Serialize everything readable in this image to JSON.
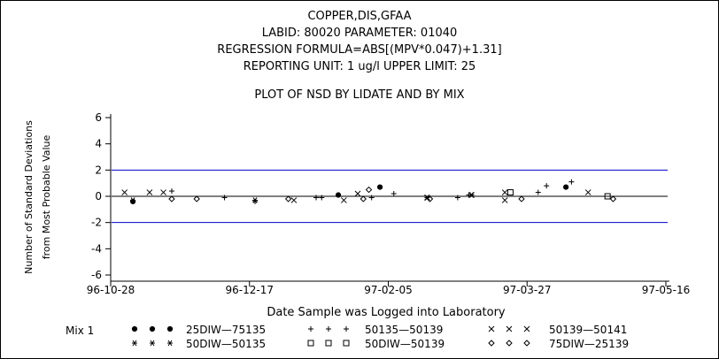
{
  "header": {
    "line1": "COPPER,DIS,GFAA",
    "line2": "LABID: 80020 PARAMETER: 01040",
    "line3": "REGRESSION FORMULA=ABS[(MPV*0.047)+1.31]",
    "line4": "REPORTING UNIT: 1 ug/l   UPPER LIMIT: 25"
  },
  "chart_data": {
    "type": "scatter",
    "title": "PLOT OF NSD BY LIDATE AND BY MIX",
    "xlabel": "Date Sample was Logged into Laboratory",
    "ylabel_line1": "Number of Standard Deviations",
    "ylabel_line2": "from Most Probable Value",
    "x_axis_type": "date",
    "xlim": [
      "1996-10-28",
      "1997-05-16"
    ],
    "x_ticks": [
      "1996-10-28",
      "1996-12-17",
      "1997-02-05",
      "1997-03-27",
      "1997-05-16"
    ],
    "x_tick_labels": [
      "96-10-28",
      "96-12-17",
      "97-02-05",
      "97-03-27",
      "97-05-16"
    ],
    "ylim": [
      -6,
      6
    ],
    "y_ticks": [
      -6,
      -4,
      -2,
      0,
      2,
      4,
      6
    ],
    "y_tick_labels": [
      "-6",
      "-4",
      "-2",
      "0",
      "2",
      "4",
      "6"
    ],
    "reference_lines": [
      {
        "y": 2,
        "color": "#0000cc"
      },
      {
        "y": 0,
        "color": "#000000"
      },
      {
        "y": -2,
        "color": "#0000cc"
      }
    ],
    "legend_title": "Mix 1",
    "series": [
      {
        "name": "25DIW—75135",
        "marker": "dot",
        "points": [
          {
            "x": "1996-11-05",
            "y": -0.4
          },
          {
            "x": "1997-01-18",
            "y": 0.1
          },
          {
            "x": "1997-02-02",
            "y": 0.7
          },
          {
            "x": "1997-04-10",
            "y": 0.7
          }
        ]
      },
      {
        "name": "50135—50139",
        "marker": "plus",
        "points": [
          {
            "x": "1996-11-19",
            "y": 0.4
          },
          {
            "x": "1996-12-08",
            "y": -0.1
          },
          {
            "x": "1996-12-19",
            "y": -0.4
          },
          {
            "x": "1997-01-10",
            "y": -0.1
          },
          {
            "x": "1997-01-12",
            "y": -0.1
          },
          {
            "x": "1997-01-30",
            "y": -0.1
          },
          {
            "x": "1997-02-07",
            "y": 0.2
          },
          {
            "x": "1997-03-02",
            "y": -0.1
          },
          {
            "x": "1997-03-06",
            "y": 0.1
          },
          {
            "x": "1997-03-31",
            "y": 0.3
          },
          {
            "x": "1997-04-03",
            "y": 0.8
          },
          {
            "x": "1997-04-12",
            "y": 1.1
          }
        ]
      },
      {
        "name": "50139—50141",
        "marker": "x",
        "points": [
          {
            "x": "1996-11-02",
            "y": 0.3
          },
          {
            "x": "1996-11-11",
            "y": 0.3
          },
          {
            "x": "1996-11-16",
            "y": 0.3
          },
          {
            "x": "1997-01-02",
            "y": -0.3
          },
          {
            "x": "1997-01-20",
            "y": -0.3
          },
          {
            "x": "1997-01-25",
            "y": 0.2
          },
          {
            "x": "1997-02-19",
            "y": -0.1
          },
          {
            "x": "1997-03-07",
            "y": 0.1
          },
          {
            "x": "1997-03-19",
            "y": 0.3
          },
          {
            "x": "1997-03-19",
            "y": -0.3
          },
          {
            "x": "1997-04-18",
            "y": 0.3
          }
        ]
      },
      {
        "name": "50DIW—50135",
        "marker": "asterisk",
        "points": [
          {
            "x": "1996-11-05",
            "y": -0.3
          },
          {
            "x": "1996-12-19",
            "y": -0.3
          },
          {
            "x": "1997-02-19",
            "y": -0.1
          },
          {
            "x": "1997-03-07",
            "y": 0.1
          }
        ]
      },
      {
        "name": "50DIW—50139",
        "marker": "square",
        "points": [
          {
            "x": "1997-03-21",
            "y": 0.3
          },
          {
            "x": "1997-04-25",
            "y": 0.0
          }
        ]
      },
      {
        "name": "75DIW—25139",
        "marker": "diamond",
        "points": [
          {
            "x": "1996-11-19",
            "y": -0.2
          },
          {
            "x": "1996-11-28",
            "y": -0.2
          },
          {
            "x": "1996-12-31",
            "y": -0.2
          },
          {
            "x": "1997-01-27",
            "y": -0.2
          },
          {
            "x": "1997-01-29",
            "y": 0.5
          },
          {
            "x": "1997-02-20",
            "y": -0.2
          },
          {
            "x": "1997-03-25",
            "y": -0.2
          },
          {
            "x": "1997-04-27",
            "y": -0.2
          }
        ]
      }
    ]
  }
}
